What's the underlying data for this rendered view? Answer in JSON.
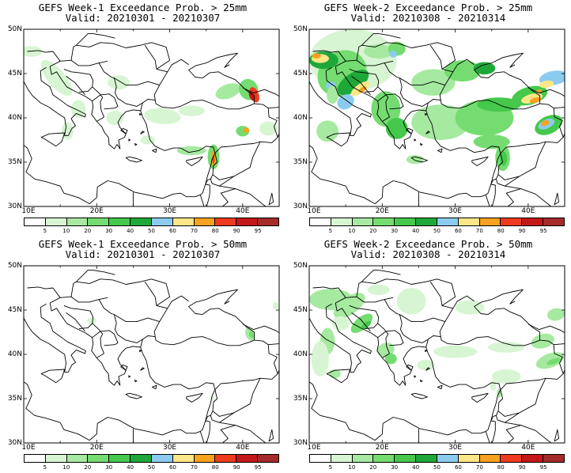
{
  "panels": [
    {
      "title": "GEFS Week-1 Exceedance Prob. > 25mm",
      "valid": "Valid: 20210301 - 20210307"
    },
    {
      "title": "GEFS Week-2 Exceedance Prob. > 25mm",
      "valid": "Valid: 20210308 - 20210314"
    },
    {
      "title": "GEFS Week-1 Exceedance Prob. > 50mm",
      "valid": "Valid: 20210301 - 20210307"
    },
    {
      "title": "GEFS Week-2 Exceedance Prob. > 50mm",
      "valid": "Valid: 20210308 - 20210314"
    }
  ],
  "lat_labels": [
    "50N",
    "45N",
    "40N",
    "35N",
    "30N"
  ],
  "lon_labels": [
    "10E",
    "20E",
    "30E",
    "40E"
  ],
  "colorbar": {
    "labels": [
      "5",
      "10",
      "20",
      "30",
      "40",
      "50",
      "60",
      "70",
      "80",
      "90",
      "95"
    ],
    "colors": [
      "#ffffff",
      "#d7f5d2",
      "#a6e9a0",
      "#74dc70",
      "#45c84b",
      "#1fa83a",
      "#8ccbf0",
      "#fce788",
      "#f9a21f",
      "#ee3a1e",
      "#c41818",
      "#a52a2a"
    ]
  },
  "colors": {
    "land_outline": "#000000",
    "background": "#ffffff"
  }
}
